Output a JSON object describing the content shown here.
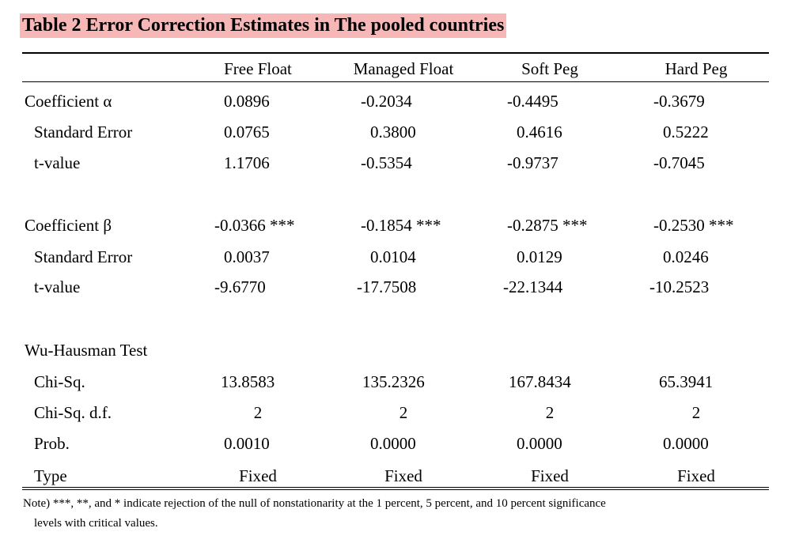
{
  "title": "Table 2 Error Correction Estimates in The pooled countries",
  "columns": [
    "Free Float",
    "Managed Float",
    "Soft Peg",
    "Hard Peg"
  ],
  "rows": [
    {
      "label": "Coefficient α",
      "values": [
        "0.0896",
        "-0.2034",
        "-0.4495",
        "-0.3679"
      ]
    },
    {
      "label": "Standard Error",
      "values": [
        "0.0765",
        "0.3800",
        "0.4616",
        "0.5222"
      ]
    },
    {
      "label": "t-value",
      "values": [
        "1.1706",
        "-0.5354",
        "-0.9737",
        "-0.7045"
      ]
    },
    {
      "label": "Coefficient β",
      "values": [
        "-0.0366 ***",
        "-0.1854 ***",
        "-0.2875 ***",
        "-0.2530 ***"
      ]
    },
    {
      "label": "Standard Error",
      "values": [
        "0.0037",
        "0.0104",
        "0.0129",
        "0.0246"
      ]
    },
    {
      "label": "t-value",
      "values": [
        "-9.6770",
        "-17.7508",
        "-22.1344",
        "-10.2523"
      ]
    },
    {
      "label": "Wu-Hausman Test",
      "values": [
        "",
        "",
        "",
        ""
      ]
    },
    {
      "label": "Chi-Sq.",
      "values": [
        "13.8583",
        "135.2326",
        "167.8434",
        "65.3941"
      ]
    },
    {
      "label": "Chi-Sq. d.f.",
      "values": [
        "2",
        "2",
        "2",
        "2"
      ]
    },
    {
      "label": "Prob.",
      "values": [
        "0.0010",
        "0.0000",
        "0.0000",
        "0.0000"
      ]
    },
    {
      "label": "Type",
      "values": [
        "Fixed",
        "Fixed",
        "Fixed",
        "Fixed"
      ]
    }
  ],
  "note": {
    "line1": "Note) ***, **, and * indicate rejection of the null of nonstationarity at the 1 percent, 5 percent, and 10 percent significance",
    "line2": "levels with critical values."
  }
}
